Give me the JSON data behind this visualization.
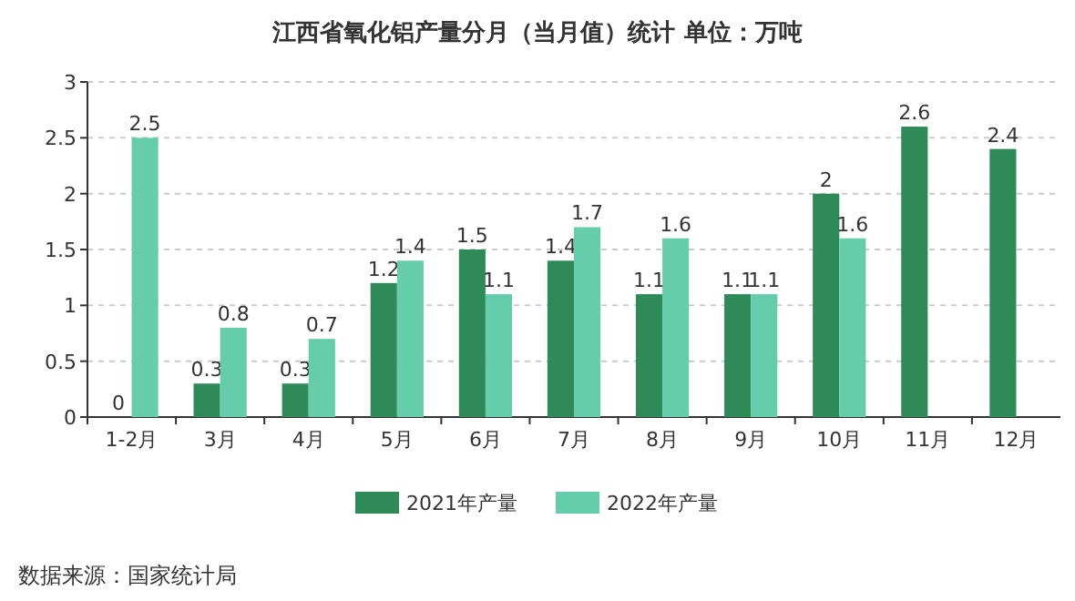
{
  "chart_data": {
    "type": "bar",
    "title": "江西省氧化铝产量分月（当月值）统计  单位：万吨",
    "categories": [
      "1-2月",
      "3月",
      "4月",
      "5月",
      "6月",
      "7月",
      "8月",
      "9月",
      "10月",
      "11月",
      "12月"
    ],
    "series": [
      {
        "name": "2021年产量",
        "color": "#2e8b57",
        "values": [
          0,
          0.3,
          0.3,
          1.2,
          1.5,
          1.4,
          1.1,
          1.1,
          2,
          2.6,
          2.4
        ]
      },
      {
        "name": "2022年产量",
        "color": "#66cdaa",
        "values": [
          2.5,
          0.8,
          0.7,
          1.4,
          1.1,
          1.7,
          1.6,
          1.1,
          1.6,
          null,
          null
        ]
      }
    ],
    "ylim": [
      0,
      3
    ],
    "yticks": [
      0,
      0.5,
      1,
      1.5,
      2,
      2.5,
      3
    ],
    "grid": "y",
    "legend": "bottom",
    "data_labels": true,
    "annotations": [
      "数据来源：国家统计局"
    ]
  }
}
